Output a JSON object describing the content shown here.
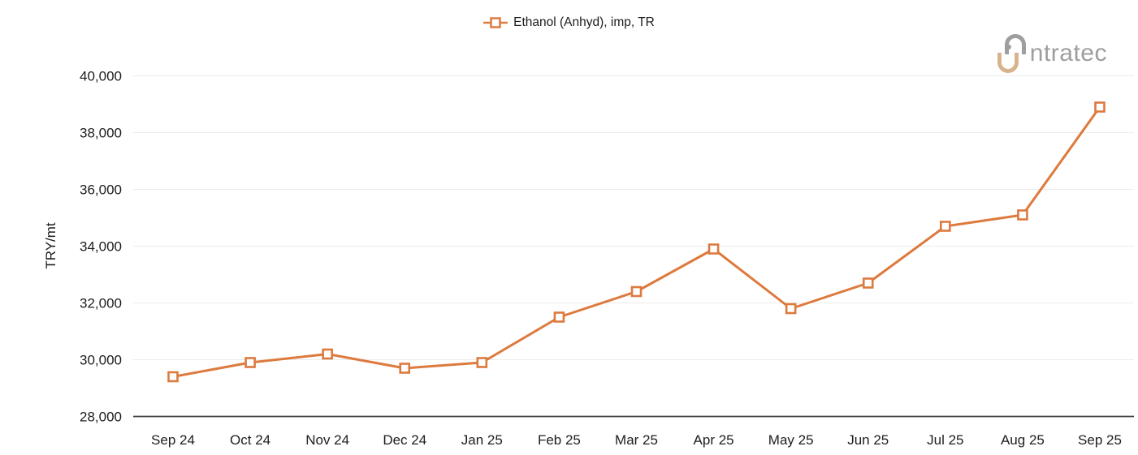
{
  "header": {
    "legend": {
      "label": "Ethanol (Anhyd), imp, TR"
    },
    "logo": {
      "wordmark": "ntratec",
      "brand": "intratec"
    }
  },
  "chart_data": {
    "type": "line",
    "title": "",
    "xlabel": "",
    "ylabel": "TRY/mt",
    "categories": [
      "Sep 24",
      "Oct 24",
      "Nov 24",
      "Dec 24",
      "Jan 25",
      "Feb 25",
      "Mar 25",
      "Apr 25",
      "May 25",
      "Jun 25",
      "Jul 25",
      "Aug 25",
      "Sep 25"
    ],
    "series": [
      {
        "name": "Ethanol (Anhyd), imp, TR",
        "color": "#DD7A3E",
        "marker": "open-square",
        "values": [
          29400,
          29900,
          30200,
          29700,
          29900,
          31500,
          32400,
          33900,
          31800,
          32700,
          34700,
          35100,
          38900
        ]
      }
    ],
    "ylim": [
      28000,
      40000
    ],
    "ytick_step": 2000,
    "grid": "horizontal",
    "legend_position": "top-center"
  },
  "colors": {
    "grid": "#ececec",
    "axis_line": "#404040",
    "text": "#1d1d1d",
    "marker_fill": "#ffffff",
    "logo_gray": "#9e9e9e",
    "logo_tan": "#d8b48e",
    "background": "#ffffff"
  }
}
